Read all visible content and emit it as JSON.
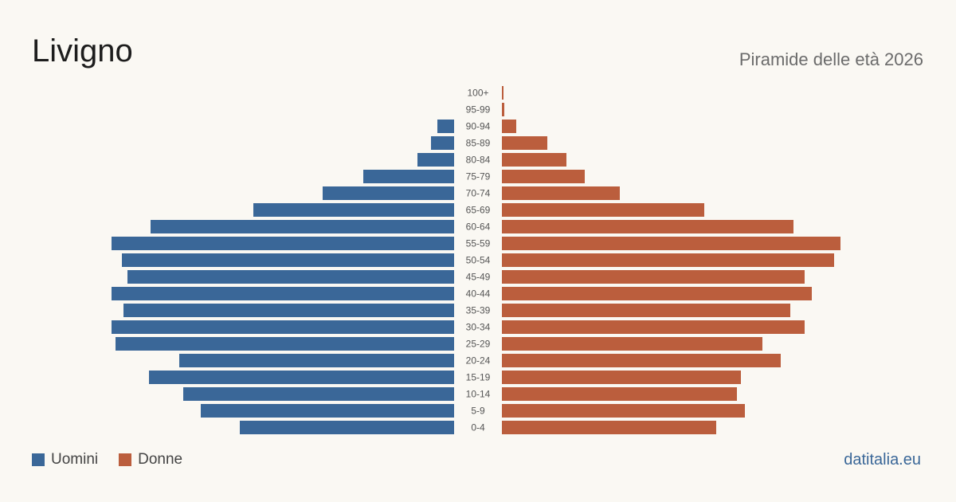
{
  "title": "Livigno",
  "subtitle": "Piramide delle età 2026",
  "brand": "datitalia.eu",
  "colors": {
    "men": "#3a6798",
    "women": "#bb5e3d"
  },
  "legend": {
    "men": "Uomini",
    "women": "Donne"
  },
  "chart_data": {
    "type": "bar",
    "orientation": "horizontal-pyramid",
    "categories": [
      "100+",
      "95-99",
      "90-94",
      "85-89",
      "80-84",
      "75-79",
      "70-74",
      "65-69",
      "60-64",
      "55-59",
      "50-54",
      "45-49",
      "40-44",
      "35-39",
      "30-34",
      "25-29",
      "20-24",
      "15-19",
      "10-14",
      "5-9",
      "0-4"
    ],
    "series": [
      {
        "name": "Uomini",
        "values": [
          0,
          0,
          21,
          29,
          46,
          114,
          165,
          252,
          381,
          430,
          417,
          410,
          430,
          415,
          430,
          425,
          345,
          383,
          340,
          318,
          269
        ]
      },
      {
        "name": "Donne",
        "values": [
          2,
          3,
          18,
          57,
          81,
          104,
          148,
          254,
          366,
          425,
          417,
          380,
          389,
          362,
          380,
          327,
          350,
          300,
          295,
          305,
          269
        ]
      }
    ],
    "legend_position": "bottom-left",
    "grid": false
  }
}
